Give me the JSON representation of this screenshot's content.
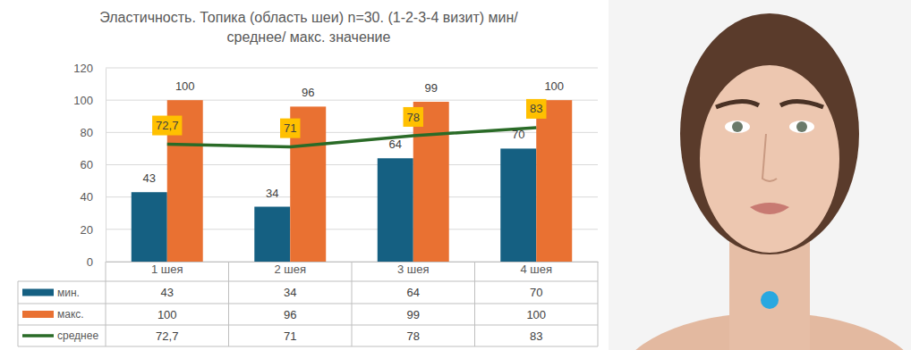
{
  "chart_data": {
    "type": "bar",
    "title": "Эластичность. Топика (область шеи) n=30. (1-2-3-4 визит) мин/\nсреднее/ макс. значение",
    "categories": [
      "1 шея",
      "2 шея",
      "3 шея",
      "4 шея"
    ],
    "series": [
      {
        "name": "мин.",
        "color": "#156082",
        "values": [
          43,
          34,
          64,
          70
        ]
      },
      {
        "name": "макс.",
        "color": "#e97132",
        "values": [
          100,
          96,
          99,
          100
        ]
      },
      {
        "name": "среднее",
        "type": "line",
        "color": "#2a6b27",
        "values": [
          72.7,
          71,
          78,
          83
        ],
        "value_labels": [
          "72,7",
          "71",
          "78",
          "83"
        ]
      }
    ],
    "ylim": [
      0,
      120
    ],
    "yticks": [
      0,
      20,
      40,
      60,
      80,
      100,
      120
    ],
    "grid": true,
    "data_labels": true
  }
}
